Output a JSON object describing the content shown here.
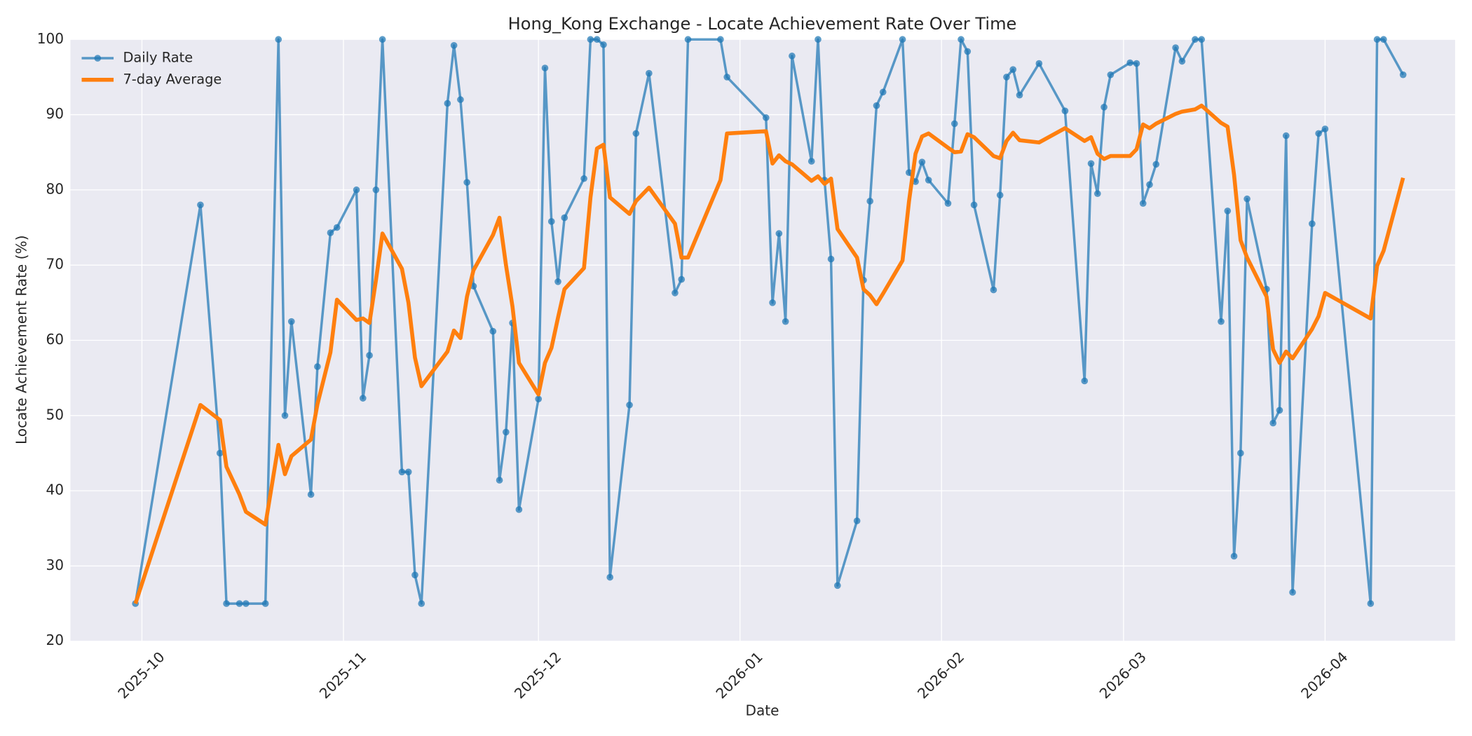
{
  "chart_data": {
    "type": "line",
    "title": "Hong_Kong Exchange - Locate Achievement Rate Over Time",
    "xlabel": "Date",
    "ylabel": "Locate Achievement Rate (%)",
    "x": [
      "2025-09-30",
      "2025-10-10",
      "2025-10-13",
      "2025-10-14",
      "2025-10-16",
      "2025-10-17",
      "2025-10-20",
      "2025-10-22",
      "2025-10-23",
      "2025-10-24",
      "2025-10-27",
      "2025-10-28",
      "2025-10-30",
      "2025-10-31",
      "2025-11-03",
      "2025-11-04",
      "2025-11-05",
      "2025-11-06",
      "2025-11-07",
      "2025-11-10",
      "2025-11-11",
      "2025-11-12",
      "2025-11-13",
      "2025-11-17",
      "2025-11-18",
      "2025-11-19",
      "2025-11-20",
      "2025-11-21",
      "2025-11-24",
      "2025-11-25",
      "2025-11-26",
      "2025-11-27",
      "2025-11-28",
      "2025-12-01",
      "2025-12-02",
      "2025-12-03",
      "2025-12-04",
      "2025-12-05",
      "2025-12-08",
      "2025-12-09",
      "2025-12-10",
      "2025-12-11",
      "2025-12-12",
      "2025-12-15",
      "2025-12-16",
      "2025-12-18",
      "2025-12-22",
      "2025-12-23",
      "2025-12-24",
      "2025-12-29",
      "2025-12-30",
      "2026-01-05",
      "2026-01-06",
      "2026-01-07",
      "2026-01-08",
      "2026-01-09",
      "2026-01-12",
      "2026-01-13",
      "2026-01-14",
      "2026-01-15",
      "2026-01-16",
      "2026-01-19",
      "2026-01-20",
      "2026-01-21",
      "2026-01-22",
      "2026-01-23",
      "2026-01-26",
      "2026-01-27",
      "2026-01-28",
      "2026-01-29",
      "2026-01-30",
      "2026-02-02",
      "2026-02-03",
      "2026-02-04",
      "2026-02-05",
      "2026-02-06",
      "2026-02-09",
      "2026-02-10",
      "2026-02-11",
      "2026-02-12",
      "2026-02-13",
      "2026-02-16",
      "2026-02-20",
      "2026-02-23",
      "2026-02-24",
      "2026-02-25",
      "2026-02-26",
      "2026-02-27",
      "2026-03-02",
      "2026-03-03",
      "2026-03-04",
      "2026-03-05",
      "2026-03-06",
      "2026-03-09",
      "2026-03-10",
      "2026-03-12",
      "2026-03-13",
      "2026-03-16",
      "2026-03-17",
      "2026-03-18",
      "2026-03-19",
      "2026-03-20",
      "2026-03-23",
      "2026-03-24",
      "2026-03-25",
      "2026-03-26",
      "2026-03-27",
      "2026-03-30",
      "2026-03-31",
      "2026-04-01",
      "2026-04-08",
      "2026-04-09",
      "2026-04-10",
      "2026-04-13"
    ],
    "series": [
      {
        "name": "Daily Rate",
        "color": "#1f77b4",
        "markers": true,
        "values": [
          25,
          78,
          45,
          25,
          25,
          25,
          25,
          100,
          50,
          62.5,
          39.5,
          56.5,
          74.3,
          75,
          80,
          52.3,
          58,
          80,
          100,
          42.5,
          42.5,
          28.8,
          25,
          91.5,
          99.2,
          92,
          81,
          67.2,
          61.2,
          41.4,
          47.8,
          62.3,
          37.5,
          52.2,
          96.2,
          75.8,
          67.8,
          76.3,
          81.5,
          100,
          100,
          99.3,
          28.5,
          51.4,
          87.5,
          95.5,
          66.3,
          68.1,
          100,
          100,
          95,
          89.6,
          65,
          74.2,
          62.5,
          97.8,
          83.8,
          100,
          81.3,
          70.8,
          27.4,
          36,
          68,
          78.5,
          91.2,
          93,
          100,
          82.3,
          81.1,
          83.7,
          81.3,
          78.2,
          88.8,
          100,
          98.4,
          78,
          66.7,
          79.3,
          95,
          96,
          92.6,
          96.8,
          90.5,
          54.6,
          83.5,
          79.5,
          91,
          95.3,
          96.9,
          96.8,
          78.2,
          80.7,
          83.4,
          98.9,
          97.1,
          100,
          100,
          62.5,
          77.2,
          31.3,
          45,
          78.8,
          66.8,
          49,
          50.7,
          87.2,
          26.5,
          75.5,
          87.5,
          88.1,
          25,
          100,
          100,
          95.3
        ]
      },
      {
        "name": "7-day Average",
        "color": "#ff7f0e",
        "markers": false,
        "values": [
          25,
          51.4,
          49.4,
          43.2,
          39.5,
          37.2,
          35.5,
          46.1,
          42.2,
          44.6,
          46.8,
          51.5,
          58.4,
          65.4,
          62.7,
          62.9,
          62.3,
          68,
          74.2,
          69.5,
          65,
          57.7,
          53.9,
          58.5,
          61.3,
          60.3,
          65.8,
          69.3,
          74,
          76.3,
          70,
          64.5,
          57,
          52.8,
          57,
          59,
          63,
          66.8,
          69.6,
          79,
          85.5,
          86,
          79,
          76.8,
          78.5,
          80.3,
          75.5,
          71,
          71,
          81.3,
          87.5,
          87.8,
          83.5,
          84.6,
          83.8,
          83.4,
          81.2,
          81.8,
          80.8,
          81.5,
          74.8,
          71,
          66.8,
          66,
          64.8,
          66.2,
          70.6,
          78.5,
          84.8,
          87.1,
          87.5,
          85.6,
          85,
          85.1,
          87.4,
          87,
          84.5,
          84.2,
          86.5,
          87.6,
          86.6,
          86.3,
          88.2,
          86.5,
          87,
          84.8,
          84.1,
          84.5,
          84.5,
          85.4,
          88.7,
          88.2,
          88.8,
          90.1,
          90.4,
          90.7,
          91.2,
          88.9,
          88.4,
          82,
          73.3,
          71,
          65.8,
          58.8,
          57,
          58.5,
          57.6,
          61.5,
          63.2,
          66.3,
          62.9,
          69.9,
          71.9,
          81.6
        ]
      }
    ],
    "xlim": [
      "2025-09-20",
      "2026-04-21"
    ],
    "xticks": [
      {
        "value": "2025-10-01",
        "label": "2025-10"
      },
      {
        "value": "2025-11-01",
        "label": "2025-11"
      },
      {
        "value": "2025-12-01",
        "label": "2025-12"
      },
      {
        "value": "2026-01-01",
        "label": "2026-01"
      },
      {
        "value": "2026-02-01",
        "label": "2026-02"
      },
      {
        "value": "2026-03-01",
        "label": "2026-03"
      },
      {
        "value": "2026-04-01",
        "label": "2026-04"
      }
    ],
    "ylim": [
      20,
      100
    ],
    "yticks": [
      20,
      30,
      40,
      50,
      60,
      70,
      80,
      90,
      100
    ],
    "grid": true,
    "legend": "upper left"
  }
}
